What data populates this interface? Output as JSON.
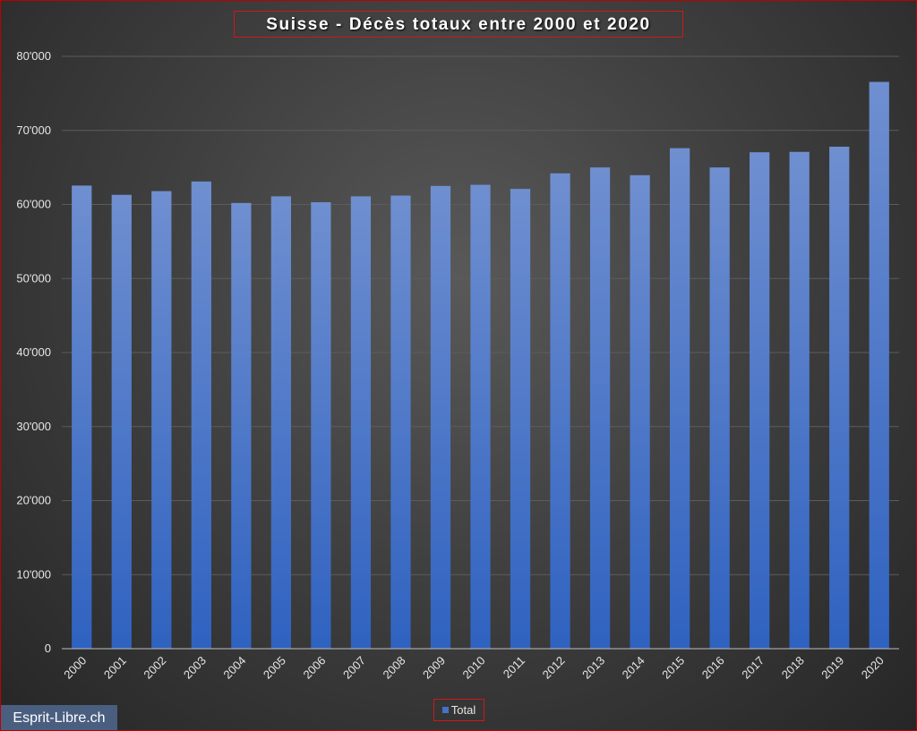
{
  "chart_data": {
    "type": "bar",
    "title": "Suisse - Décès totaux entre 2000 et 2020",
    "xlabel": "",
    "ylabel": "",
    "categories": [
      "2000",
      "2001",
      "2002",
      "2003",
      "2004",
      "2005",
      "2006",
      "2007",
      "2008",
      "2009",
      "2010",
      "2011",
      "2012",
      "2013",
      "2014",
      "2015",
      "2016",
      "2017",
      "2018",
      "2019",
      "2020"
    ],
    "series": [
      {
        "name": "Total",
        "color": "#4472c4",
        "values": [
          62550,
          61300,
          61800,
          63100,
          60200,
          61100,
          60300,
          61100,
          61200,
          62500,
          62650,
          62100,
          64200,
          65000,
          63950,
          67600,
          65000,
          67050,
          67100,
          67800,
          76550
        ]
      }
    ],
    "ylim": [
      0,
      80000
    ],
    "yticks": [
      "0",
      "10'000",
      "20'000",
      "30'000",
      "40'000",
      "50'000",
      "60'000",
      "70'000",
      "80'000"
    ],
    "grid": true,
    "legend_position": "bottom"
  },
  "legend": {
    "label": "Total"
  },
  "watermark": {
    "text": "Esprit-Libre.ch"
  }
}
